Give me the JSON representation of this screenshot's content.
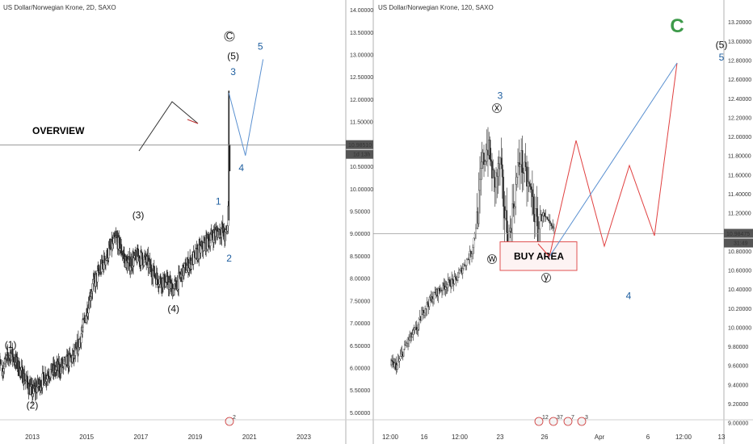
{
  "chart_data": [
    {
      "type": "candlestick",
      "title": "US Dollar/Norwegian Krone, 2D, SAXO",
      "x_ticks": [
        "2013",
        "2015",
        "2017",
        "2019",
        "2021",
        "2023"
      ],
      "y_ticks": [
        "14.00000",
        "13.50000",
        "13.00000",
        "12.50000",
        "12.00000",
        "11.50000",
        "11.00000",
        "10.50000",
        "10.00000",
        "9.50000",
        "9.00000",
        "8.50000",
        "8.00000",
        "7.50000",
        "7.00000",
        "6.50000",
        "6.00000",
        "5.50000",
        "5.00000"
      ],
      "ylim": [
        4.9,
        14.1
      ],
      "last_price": "10.98510",
      "countdown": "1d 13h",
      "annotation_text": "OVERVIEW",
      "wave_labels": [
        {
          "text": "(1)",
          "x": 2012.2,
          "y": 6.45,
          "color": "black"
        },
        {
          "text": "(2)",
          "x": 2013.0,
          "y": 5.1,
          "color": "black"
        },
        {
          "text": "(3)",
          "x": 2016.9,
          "y": 9.35,
          "color": "black"
        },
        {
          "text": "(4)",
          "x": 2018.2,
          "y": 7.25,
          "color": "black"
        },
        {
          "text": "1",
          "x": 2019.85,
          "y": 9.65,
          "color": "blue"
        },
        {
          "text": "2",
          "x": 2020.25,
          "y": 8.38,
          "color": "blue"
        },
        {
          "text": "(5)",
          "x": 2020.4,
          "y": 12.9,
          "color": "black"
        },
        {
          "text": "3",
          "x": 2020.4,
          "y": 12.55,
          "color": "blue"
        },
        {
          "text": "4",
          "x": 2020.7,
          "y": 10.4,
          "color": "blue"
        },
        {
          "text": "5",
          "x": 2021.4,
          "y": 13.12,
          "color": "blue"
        }
      ],
      "event_badges": [
        "2"
      ]
    },
    {
      "type": "candlestick",
      "title": "US Dollar/Norwegian Krone, 120, SAXO",
      "x_ticks": [
        "12:00",
        "16",
        "12:00",
        "23",
        "26",
        "Apr",
        "6",
        "12:00",
        "13"
      ],
      "y_ticks": [
        "13.20000",
        "13.00000",
        "12.80000",
        "12.60000",
        "12.40000",
        "12.20000",
        "12.00000",
        "11.80000",
        "11.60000",
        "11.40000",
        "11.20000",
        "11.00000",
        "10.80000",
        "10.60000",
        "10.40000",
        "10.20000",
        "10.00000",
        "9.80000",
        "9.60000",
        "9.40000",
        "9.20000",
        "9.00000"
      ],
      "ylim": [
        8.95,
        13.35
      ],
      "last_price": "10.98475",
      "countdown": "31:49",
      "box_label": "BUY AREA",
      "big_label": "C",
      "wave_labels": [
        {
          "text": "3",
          "x": 3.0,
          "y": 12.4,
          "color": "blue"
        },
        {
          "text": "4",
          "x": 5.6,
          "y": 10.3,
          "color": "blue"
        },
        {
          "text": "(5)",
          "x": 9.65,
          "y": 12.93,
          "color": "black"
        },
        {
          "text": "5",
          "x": 9.65,
          "y": 12.8,
          "color": "blue"
        }
      ],
      "buy_area_range": [
        10.6,
        10.9
      ],
      "event_badges": [
        "12",
        "37",
        "7",
        "3"
      ]
    }
  ]
}
